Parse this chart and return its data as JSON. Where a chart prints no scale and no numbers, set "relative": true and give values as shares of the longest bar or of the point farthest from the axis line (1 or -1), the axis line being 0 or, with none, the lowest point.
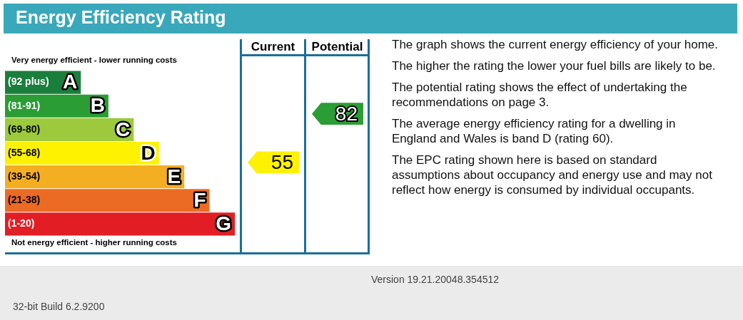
{
  "chart_data": [
    {
      "type": "bar",
      "orientation": "horizontal",
      "relative": true,
      "title": "Energy Efficiency Rating",
      "categories": [
        "(92 plus) A",
        "(81-91) B",
        "(69-80) C",
        "(55-68) D",
        "(39-54) E",
        "(21-38) F",
        "(1-20) G"
      ],
      "values": [
        0.33,
        0.45,
        0.56,
        0.67,
        0.78,
        0.89,
        1
      ],
      "colors": [
        "#1a7f3c",
        "#2a9d35",
        "#9cca3c",
        "#fff200",
        "#f4ae22",
        "#ec6b24",
        "#e31d24"
      ],
      "annotations": [
        "Very energy efficient - lower running costs",
        "Not energy efficient - higher running costs"
      ]
    },
    {
      "type": "other",
      "categories": [
        "Current",
        "Potential"
      ],
      "values": [
        55,
        82
      ],
      "colors": [
        "#fff200",
        "#2a9d35"
      ],
      "data_labels": true
    },
    {
      "type": "other",
      "annotations": [
        "The graph shows the current energy efficiency of your home.",
        "The higher the rating the lower your fuel bills are likely to be.",
        "The potential rating shows the effect of undertaking the recommendations on page 3.",
        "The average energy efficiency rating for a dwelling in England and Wales is band D (rating 60).",
        "The EPC rating shown here is based on standard assumptions about occupancy and energy use and may not reflect how energy is consumed by individual occupants.",
        "Version 19.21.20048.354512",
        "32-bit Build 6.2.9200"
      ]
    }
  ]
}
